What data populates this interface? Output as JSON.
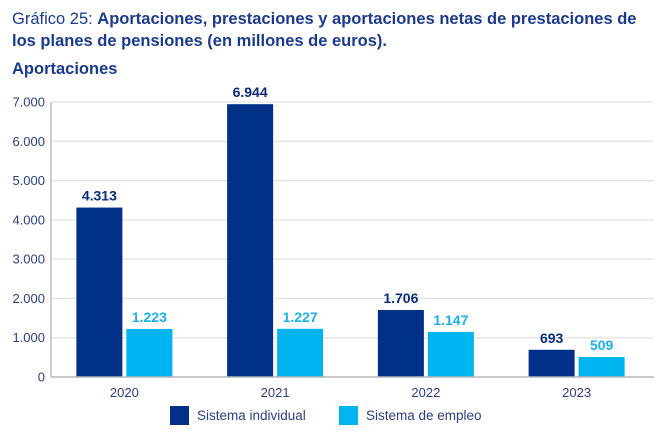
{
  "header": {
    "prefix": "Gráfico 25: ",
    "title": "Aportaciones, prestaciones y aportaciones netas de prestaciones de los planes de pensiones (en millones de euros).",
    "subtitle": "Aportaciones"
  },
  "colors": {
    "Sistema individual": "#003087",
    "Sistema de empleo": "#00B5EF",
    "title": "#1b3a8a",
    "grid": "#e3e3e3",
    "axis": "#b5b5b5"
  },
  "chart_data": {
    "type": "bar",
    "title": "Aportaciones",
    "xlabel": "",
    "ylabel": "",
    "categories": [
      "2020",
      "2021",
      "2022",
      "2023"
    ],
    "series": [
      {
        "name": "Sistema individual",
        "values": [
          4313,
          6944,
          1706,
          693
        ],
        "labels": [
          "4.313",
          "6.944",
          "1.706",
          "693"
        ]
      },
      {
        "name": "Sistema de empleo",
        "values": [
          1223,
          1227,
          1147,
          509
        ],
        "labels": [
          "1.223",
          "1.227",
          "1.147",
          "509"
        ]
      }
    ],
    "ylim": [
      0,
      7000
    ],
    "yticks": [
      0,
      1000,
      2000,
      3000,
      4000,
      5000,
      6000,
      7000
    ],
    "ytick_labels": [
      "0",
      "1.000",
      "2.000",
      "3.000",
      "4.000",
      "5.000",
      "6.000",
      "7.000"
    ],
    "grid": true,
    "legend": "bottom-center"
  }
}
